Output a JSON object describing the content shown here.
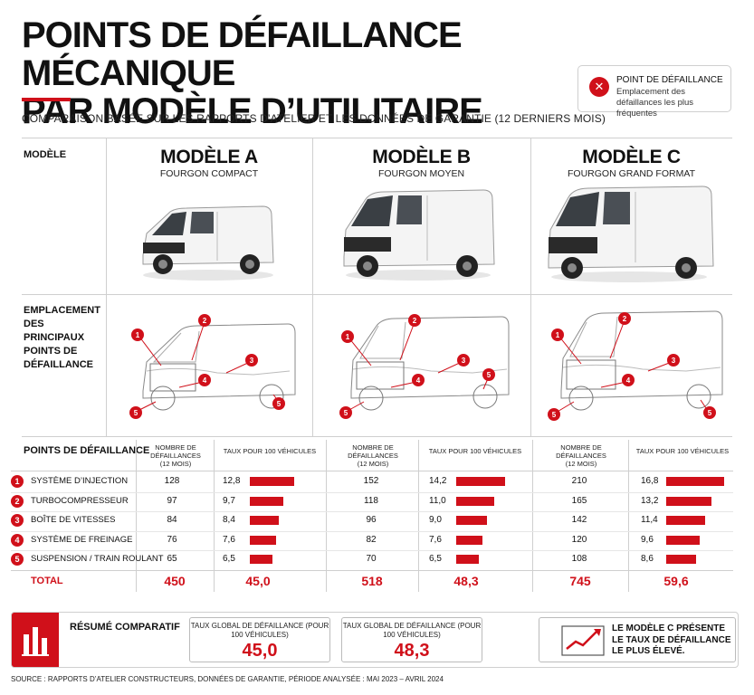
{
  "header": {
    "title_line1": "POINTS DE DÉFAILLANCE MÉCANIQUE",
    "title_line2": "PAR MODÈLE D’UTILITAIRE",
    "subtitle": "COMPARAISON BASÉE SUR LES RAPPORTS D’ATELIER ET LES DONNÉES DE GARANTIE (12 DERNIERS MOIS)"
  },
  "legend": {
    "icon": "close-x-icon",
    "title": "POINT DE DÉFAILLANCE",
    "description": "Emplacement des défaillances les plus fréquentes"
  },
  "row_labels": {
    "model": "MODÈLE",
    "location": "EMPLACEMENT DES PRINCIPAUX POINTS DE DÉFAILLANCE"
  },
  "models": [
    {
      "name": "MODÈLE A",
      "type": "FOURGON COMPACT"
    },
    {
      "name": "MODÈLE B",
      "type": "FOURGON MOYEN"
    },
    {
      "name": "MODÈLE C",
      "type": "FOURGON GRAND FORMAT"
    }
  ],
  "table": {
    "header": "POINTS DE DÉFAILLANCE",
    "col_count": "NOMBRE DE DÉFAILLANCES",
    "col_count_sub": "(12 MOIS)",
    "col_rate": "TAUX POUR 100 VÉHICULES",
    "rows": [
      {
        "num": "1",
        "label": "SYSTÈME D’INJECTION",
        "a_count": "128",
        "a_rate": "12,8",
        "b_count": "152",
        "b_rate": "14,2",
        "c_count": "210",
        "c_rate": "16,8"
      },
      {
        "num": "2",
        "label": "TURBOCOMPRESSEUR",
        "a_count": "97",
        "a_rate": "9,7",
        "b_count": "118",
        "b_rate": "11,0",
        "c_count": "165",
        "c_rate": "13,2"
      },
      {
        "num": "3",
        "label": "BOÎTE DE VITESSES",
        "a_count": "84",
        "a_rate": "8,4",
        "b_count": "96",
        "b_rate": "9,0",
        "c_count": "142",
        "c_rate": "11,4"
      },
      {
        "num": "4",
        "label": "SYSTÈME DE FREINAGE",
        "a_count": "76",
        "a_rate": "7,6",
        "b_count": "82",
        "b_rate": "7,6",
        "c_count": "120",
        "c_rate": "9,6"
      },
      {
        "num": "5",
        "label": "SUSPENSION / TRAIN ROULANT",
        "a_count": "65",
        "a_rate": "6,5",
        "b_count": "70",
        "b_rate": "6,5",
        "c_count": "108",
        "c_rate": "8,6"
      }
    ],
    "total_label": "TOTAL",
    "total": {
      "a_count": "450",
      "a_rate": "45,0",
      "b_count": "518",
      "b_rate": "48,3",
      "c_count": "745",
      "c_rate": "59,6"
    },
    "rate_fractions": {
      "a": [
        0.762,
        0.577,
        0.5,
        0.452,
        0.387
      ],
      "b": [
        0.845,
        0.655,
        0.536,
        0.452,
        0.387
      ],
      "c": [
        1.0,
        0.786,
        0.679,
        0.571,
        0.512
      ]
    }
  },
  "summary": {
    "icon": "bar-chart-icon",
    "title": "RÉSUMÉ COMPARATIF",
    "box1_label": "TAUX GLOBAL DE DÉFAILLANCE (POUR 100 VÉHICULES)",
    "box1_value": "45,0",
    "box2_label": "TAUX GLOBAL DE DÉFAILLANCE (POUR 100 VÉHICULES)",
    "box2_value": "48,3",
    "note_icon": "trend-up-icon",
    "note_line1": "LE MODÈLE C PRÉSENTE",
    "note_line2": "LE TAUX DE DÉFAILLANCE",
    "note_line3": "LE PLUS ÉLEVÉ."
  },
  "source": "SOURCE : RAPPORTS D’ATELIER CONSTRUCTEURS, DONNÉES DE GARANTIE, PÉRIODE ANALYSÉE : MAI 2023 – AVRIL 2024",
  "colors": {
    "accent": "#d0101a",
    "text": "#111111",
    "grid": "#cfcfcf"
  }
}
